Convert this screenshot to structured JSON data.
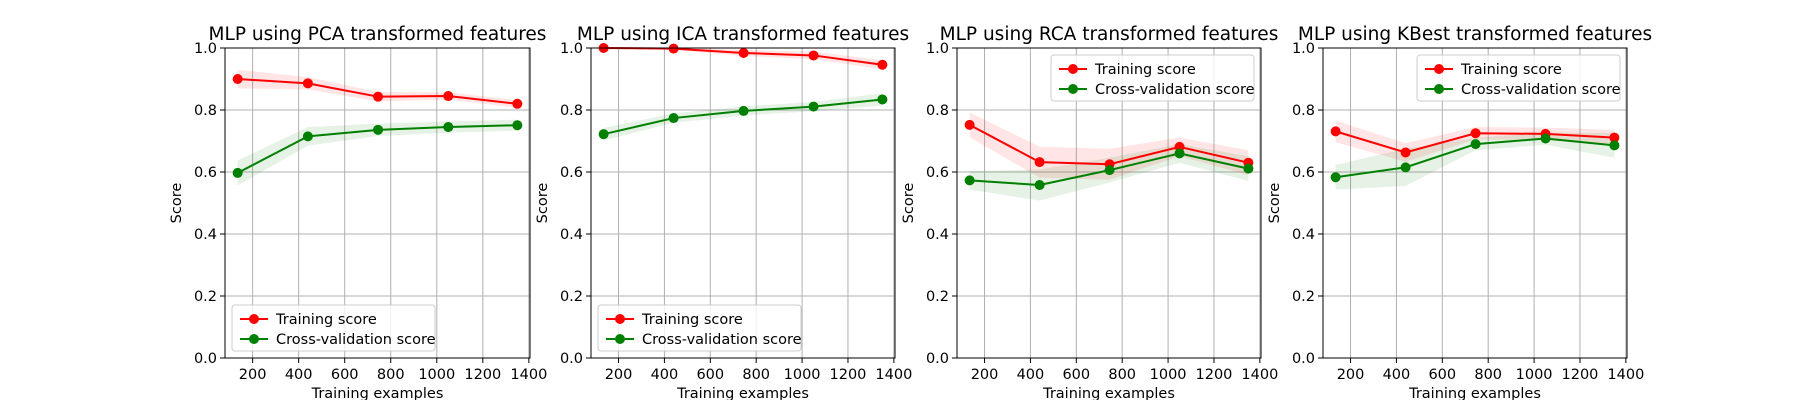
{
  "chart_data": [
    {
      "type": "line",
      "title": "MLP using PCA transformed features",
      "xlabel": "Training examples",
      "ylabel": "Score",
      "xlim": [
        80,
        1405
      ],
      "ylim": [
        0.0,
        1.0
      ],
      "xticks": [
        200,
        400,
        600,
        800,
        1000,
        1200,
        1400
      ],
      "yticks": [
        0.0,
        0.2,
        0.4,
        0.6,
        0.8,
        1.0
      ],
      "grid": true,
      "legend_position": "lower-left",
      "x": [
        135,
        440,
        745,
        1050,
        1350
      ],
      "series": [
        {
          "name": "Training score",
          "color": "#ff0000",
          "values": [
            0.9,
            0.886,
            0.843,
            0.845,
            0.82
          ],
          "band": [
            0.03,
            0.02,
            0.015,
            0.012,
            0.012
          ]
        },
        {
          "name": "Cross-validation score",
          "color": "#008000",
          "values": [
            0.597,
            0.715,
            0.736,
            0.745,
            0.751
          ],
          "band": [
            0.04,
            0.03,
            0.02,
            0.018,
            0.018
          ]
        }
      ]
    },
    {
      "type": "line",
      "title": "MLP using ICA transformed features",
      "xlabel": "Training examples",
      "ylabel": "Score",
      "xlim": [
        80,
        1405
      ],
      "ylim": [
        0.0,
        1.0
      ],
      "xticks": [
        200,
        400,
        600,
        800,
        1000,
        1200,
        1400
      ],
      "yticks": [
        0.0,
        0.2,
        0.4,
        0.6,
        0.8,
        1.0
      ],
      "grid": true,
      "legend_position": "lower-left",
      "x": [
        135,
        440,
        745,
        1050,
        1350
      ],
      "series": [
        {
          "name": "Training score",
          "color": "#ff0000",
          "values": [
            1.0,
            0.998,
            0.984,
            0.976,
            0.946
          ],
          "band": [
            0.001,
            0.004,
            0.01,
            0.012,
            0.015
          ]
        },
        {
          "name": "Cross-validation score",
          "color": "#008000",
          "values": [
            0.722,
            0.774,
            0.797,
            0.811,
            0.834
          ],
          "band": [
            0.02,
            0.015,
            0.015,
            0.015,
            0.02
          ]
        }
      ]
    },
    {
      "type": "line",
      "title": "MLP using RCA transformed features",
      "xlabel": "Training examples",
      "ylabel": "Score",
      "xlim": [
        80,
        1405
      ],
      "ylim": [
        0.0,
        1.0
      ],
      "xticks": [
        200,
        400,
        600,
        800,
        1000,
        1200,
        1400
      ],
      "yticks": [
        0.0,
        0.2,
        0.4,
        0.6,
        0.8,
        1.0
      ],
      "grid": true,
      "legend_position": "upper-right",
      "x": [
        135,
        440,
        745,
        1050,
        1350
      ],
      "series": [
        {
          "name": "Training score",
          "color": "#ff0000",
          "values": [
            0.752,
            0.632,
            0.625,
            0.681,
            0.63
          ],
          "band": [
            0.04,
            0.05,
            0.05,
            0.03,
            0.04
          ]
        },
        {
          "name": "Cross-validation score",
          "color": "#008000",
          "values": [
            0.573,
            0.558,
            0.606,
            0.66,
            0.611
          ],
          "band": [
            0.03,
            0.05,
            0.04,
            0.03,
            0.04
          ]
        }
      ]
    },
    {
      "type": "line",
      "title": "MLP using KBest transformed features",
      "xlabel": "Training examples",
      "ylabel": "Score",
      "xlim": [
        80,
        1405
      ],
      "ylim": [
        0.0,
        1.0
      ],
      "xticks": [
        200,
        400,
        600,
        800,
        1000,
        1200,
        1400
      ],
      "yticks": [
        0.0,
        0.2,
        0.4,
        0.6,
        0.8,
        1.0
      ],
      "grid": true,
      "legend_position": "upper-right",
      "x": [
        135,
        440,
        745,
        1050,
        1350
      ],
      "series": [
        {
          "name": "Training score",
          "color": "#ff0000",
          "values": [
            0.731,
            0.663,
            0.725,
            0.723,
            0.711
          ],
          "band": [
            0.035,
            0.03,
            0.02,
            0.02,
            0.025
          ]
        },
        {
          "name": "Cross-validation score",
          "color": "#008000",
          "values": [
            0.583,
            0.615,
            0.69,
            0.708,
            0.686
          ],
          "band": [
            0.04,
            0.06,
            0.02,
            0.02,
            0.04
          ]
        }
      ]
    }
  ]
}
